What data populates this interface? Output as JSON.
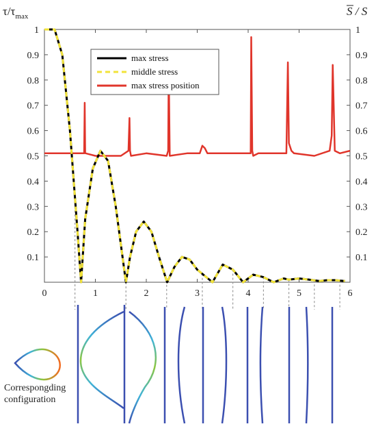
{
  "chart_data": {
    "type": "line",
    "ylabel_left": "τ/τ",
    "ylabel_left_sub": "max",
    "ylabel_right": "S / S",
    "xlim": [
      0,
      6
    ],
    "ylim": [
      0,
      1
    ],
    "x_ticks": [
      "0",
      "1",
      "2",
      "3",
      "4",
      "5",
      "6"
    ],
    "y_ticks_left": [
      "0.1",
      "0.2",
      "0.3",
      "0.4",
      "0.5",
      "0.6",
      "0.7",
      "0.8",
      "0.9",
      "1"
    ],
    "y_ticks_right": [
      "0.1",
      "0.2",
      "0.3",
      "0.4",
      "0.5",
      "0.6",
      "0.7",
      "0.8",
      "0.9",
      "1"
    ],
    "legend_position": "top-center",
    "series": [
      {
        "name": "max stress",
        "color": "#000000",
        "style": "solid",
        "x": [
          0,
          0.2,
          0.35,
          0.5,
          0.65,
          0.72,
          0.8,
          0.95,
          1.1,
          1.25,
          1.4,
          1.6,
          1.68,
          1.8,
          1.95,
          2.1,
          2.25,
          2.41,
          2.55,
          2.7,
          2.85,
          3.0,
          3.3,
          3.5,
          3.7,
          3.9,
          4.1,
          4.3,
          4.5,
          4.7,
          4.8,
          5.0,
          5.2,
          5.4,
          5.55,
          5.7,
          5.9
        ],
        "y": [
          1.0,
          1.0,
          0.9,
          0.6,
          0.2,
          0.0,
          0.25,
          0.45,
          0.52,
          0.48,
          0.3,
          0.0,
          0.1,
          0.2,
          0.24,
          0.2,
          0.1,
          0.0,
          0.06,
          0.1,
          0.09,
          0.05,
          0.0,
          0.07,
          0.05,
          0.0,
          0.03,
          0.02,
          0.0,
          0.015,
          0.01,
          0.015,
          0.01,
          0.005,
          0.008,
          0.008,
          0.005
        ]
      },
      {
        "name": "middle stress",
        "color": "#f2e33a",
        "style": "dashed",
        "x": [
          0,
          0.2,
          0.35,
          0.5,
          0.65,
          0.72,
          0.8,
          0.95,
          1.1,
          1.25,
          1.4,
          1.6,
          1.68,
          1.8,
          1.95,
          2.1,
          2.25,
          2.41,
          2.55,
          2.7,
          2.85,
          3.0,
          3.3,
          3.5,
          3.7,
          3.9,
          4.1,
          4.3,
          4.5,
          4.7,
          4.8,
          5.0,
          5.2,
          5.4,
          5.55,
          5.7,
          5.9
        ],
        "y": [
          1.0,
          1.0,
          0.9,
          0.6,
          0.2,
          0.0,
          0.25,
          0.45,
          0.52,
          0.48,
          0.3,
          0.0,
          0.1,
          0.2,
          0.24,
          0.2,
          0.1,
          0.0,
          0.06,
          0.1,
          0.09,
          0.05,
          0.0,
          0.07,
          0.05,
          0.0,
          0.03,
          0.02,
          0.0,
          0.015,
          0.01,
          0.015,
          0.01,
          0.005,
          0.008,
          0.008,
          0.005
        ]
      },
      {
        "name": "max stress position",
        "color": "#e0352b",
        "style": "solid",
        "x": [
          0.0,
          0.5,
          0.78,
          0.79,
          0.8,
          0.81,
          1.0,
          1.5,
          1.65,
          1.67,
          1.68,
          1.7,
          2.0,
          2.4,
          2.43,
          2.44,
          2.46,
          2.8,
          3.05,
          3.1,
          3.15,
          3.2,
          3.6,
          4.05,
          4.06,
          4.08,
          4.1,
          4.2,
          4.4,
          4.75,
          4.78,
          4.8,
          4.85,
          4.9,
          5.3,
          5.6,
          5.64,
          5.66,
          5.7,
          5.8,
          6.0
        ],
        "y": [
          0.51,
          0.51,
          0.51,
          0.71,
          0.51,
          0.51,
          0.5,
          0.5,
          0.52,
          0.65,
          0.52,
          0.5,
          0.51,
          0.5,
          0.52,
          0.86,
          0.5,
          0.51,
          0.51,
          0.54,
          0.53,
          0.51,
          0.51,
          0.51,
          0.97,
          0.52,
          0.5,
          0.51,
          0.51,
          0.51,
          0.87,
          0.55,
          0.52,
          0.51,
          0.5,
          0.52,
          0.58,
          0.86,
          0.52,
          0.51,
          0.52
        ]
      }
    ],
    "annotation": "Correspongding configuration",
    "configuration_x": [
      0.6,
      1.6,
      2.4,
      3.1,
      3.7,
      4.3,
      4.8,
      5.3,
      5.8
    ]
  }
}
